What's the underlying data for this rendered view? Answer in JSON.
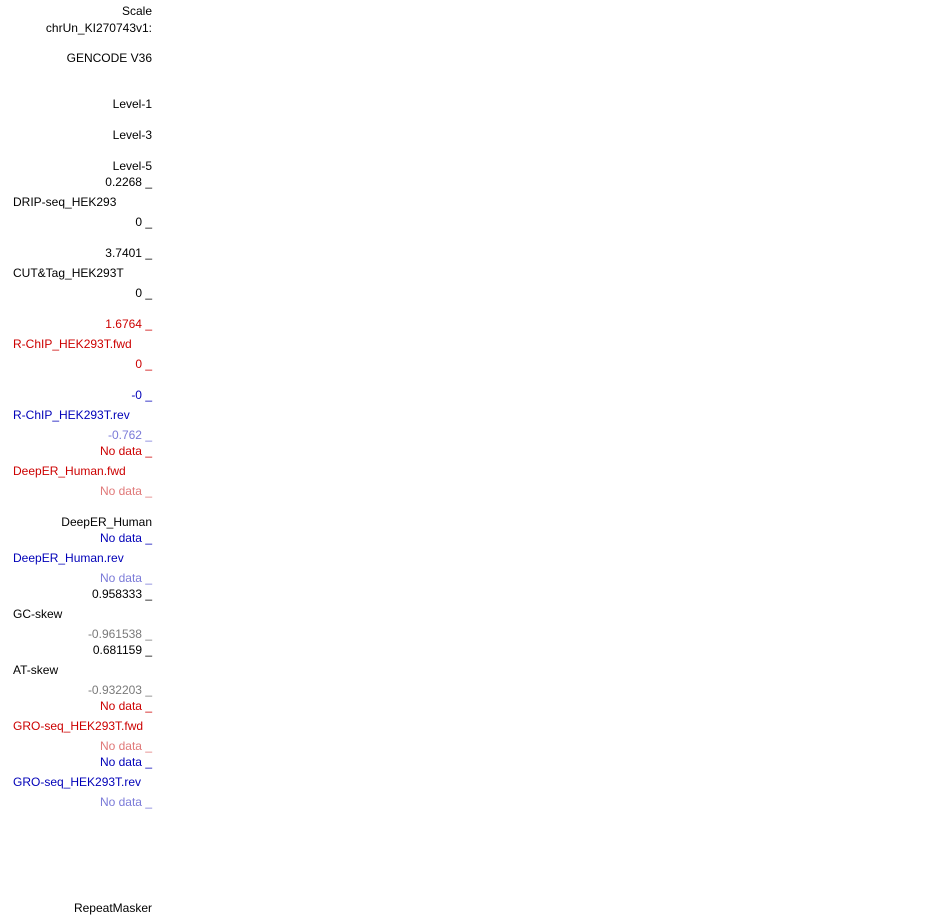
{
  "header": {
    "scale": "Scale",
    "chrom": "chrUn_KI270743v1:"
  },
  "gencode": {
    "title": "GENCODE V36",
    "level1": "Level-1",
    "level3": "Level-3",
    "level5": "Level-5"
  },
  "tracks": {
    "drip": {
      "max": "0.2268 _",
      "name": "DRIP-seq_HEK293",
      "min": "0 _"
    },
    "cuttag": {
      "max": "3.7401 _",
      "name": "CUT&Tag_HEK293T",
      "min": "0 _"
    },
    "rchip_fwd": {
      "max": "1.6764 _",
      "name": "R-ChIP_HEK293T.fwd",
      "min": "0 _"
    },
    "rchip_rev": {
      "max": "-0 _",
      "name": "R-ChIP_HEK293T.rev",
      "min": "-0.762 _"
    },
    "deeper_fwd": {
      "max": "No data _",
      "name": "DeepER_Human.fwd",
      "min": "No data _"
    },
    "deeper_group": {
      "name": "DeepER_Human"
    },
    "deeper_rev": {
      "max": "No data _",
      "name": "DeepER_Human.rev",
      "min": "No data _"
    },
    "gc_skew": {
      "max": "0.958333 _",
      "name": "GC-skew",
      "min": "-0.961538 _"
    },
    "at_skew": {
      "max": "0.681159 _",
      "name": "AT-skew",
      "min": "-0.932203 _"
    },
    "gro_fwd": {
      "max": "No data _",
      "name": "GRO-seq_HEK293T.fwd",
      "min": "No data _"
    },
    "gro_rev": {
      "max": "No data _",
      "name": "GRO-seq_HEK293T.rev",
      "min": "No data _"
    },
    "repeatmasker": {
      "name": "RepeatMasker"
    }
  },
  "colors": {
    "black": "#000000",
    "red": "#cc0000",
    "light_red": "#e07878",
    "blue": "#0000b8",
    "light_blue": "#7a7ad8",
    "gray": "#7a7a7a"
  }
}
